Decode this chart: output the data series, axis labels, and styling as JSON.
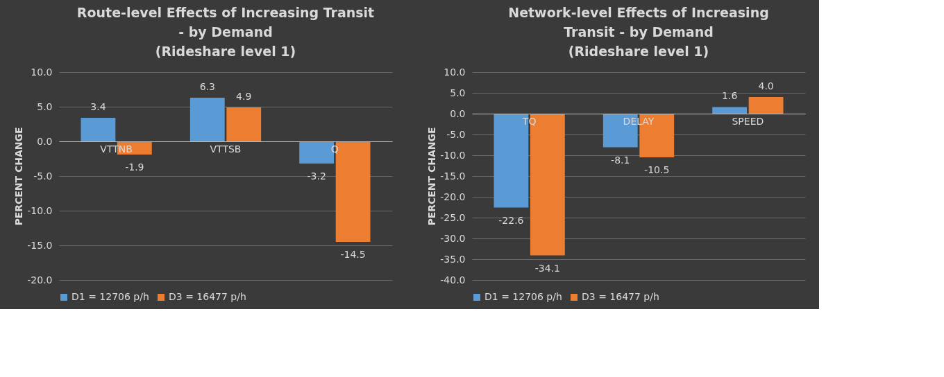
{
  "chart_data": [
    {
      "type": "bar",
      "title": "Route-level Effects of Increasing Transit\n- by Demand\n(Rideshare level 1)",
      "ylabel": "PERCENT CHANGE",
      "categories": [
        "VTTNB",
        "VTTSB",
        "Q"
      ],
      "series": [
        {
          "name": "D1 = 12706 p/h",
          "color": "#5b9bd5",
          "values": [
            3.4,
            6.3,
            -3.2
          ],
          "value_labels": [
            "3.4",
            "6.3",
            "-3.2"
          ]
        },
        {
          "name": "D3 = 16477 p/h",
          "color": "#ed7d31",
          "values": [
            -1.9,
            4.9,
            -14.5
          ],
          "value_labels": [
            "-1.9",
            "4.9",
            "-14.5"
          ]
        }
      ],
      "ylim": [
        -20,
        10
      ],
      "yticks": [
        {
          "value": -20,
          "label": "-20.0"
        },
        {
          "value": -15,
          "label": "-15.0"
        },
        {
          "value": -10,
          "label": "-10.0"
        },
        {
          "value": -5,
          "label": "-5.0"
        },
        {
          "value": 0,
          "label": "0.0"
        },
        {
          "value": 5,
          "label": "5.0"
        },
        {
          "value": 10,
          "label": "10.0"
        }
      ],
      "grid": "y",
      "legend": "bottom"
    },
    {
      "type": "bar",
      "title": "Network-level Effects of Increasing\nTransit - by Demand\n(Rideshare level 1)",
      "ylabel": "PERCENT CHANGE",
      "categories": [
        "TQ",
        "DELAY",
        "SPEED"
      ],
      "series": [
        {
          "name": "D1 = 12706 p/h",
          "color": "#5b9bd5",
          "values": [
            -22.6,
            -8.1,
            1.6
          ],
          "value_labels": [
            "-22.6",
            "-8.1",
            "1.6"
          ]
        },
        {
          "name": "D3 = 16477 p/h",
          "color": "#ed7d31",
          "values": [
            -34.1,
            -10.5,
            4.0
          ],
          "value_labels": [
            "-34.1",
            "-10.5",
            "4.0"
          ]
        }
      ],
      "ylim": [
        -40,
        10
      ],
      "yticks": [
        {
          "value": -40,
          "label": "-40.0"
        },
        {
          "value": -35,
          "label": "-35.0"
        },
        {
          "value": -30,
          "label": "-30.0"
        },
        {
          "value": -25,
          "label": "-25.0"
        },
        {
          "value": -20,
          "label": "-20.0"
        },
        {
          "value": -15,
          "label": "-15.0"
        },
        {
          "value": -10,
          "label": "-10.0"
        },
        {
          "value": -5,
          "label": "-5.0"
        },
        {
          "value": 0,
          "label": "0.0"
        },
        {
          "value": 5,
          "label": "5.0"
        },
        {
          "value": 10,
          "label": "10.0"
        }
      ],
      "grid": "y",
      "legend": "bottom"
    }
  ]
}
